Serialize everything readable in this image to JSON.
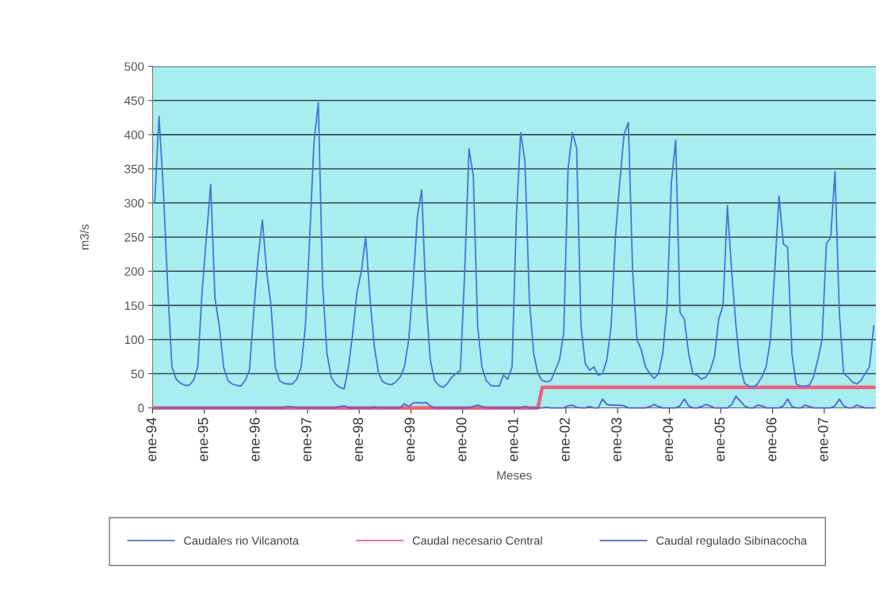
{
  "chart_data": {
    "type": "line",
    "xlabel": "Meses",
    "ylabel": "m3/s",
    "categories": [
      "ene-94",
      null,
      null,
      null,
      null,
      null,
      null,
      null,
      null,
      null,
      null,
      null,
      "ene-95",
      null,
      null,
      null,
      null,
      null,
      null,
      null,
      null,
      null,
      null,
      null,
      "ene-96",
      null,
      null,
      null,
      null,
      null,
      null,
      null,
      null,
      null,
      null,
      null,
      "ene-97",
      null,
      null,
      null,
      null,
      null,
      null,
      null,
      null,
      null,
      null,
      null,
      "ene-98",
      null,
      null,
      null,
      null,
      null,
      null,
      null,
      null,
      null,
      null,
      null,
      "ene-99",
      null,
      null,
      null,
      null,
      null,
      null,
      null,
      null,
      null,
      null,
      null,
      "ene-00",
      null,
      null,
      null,
      null,
      null,
      null,
      null,
      null,
      null,
      null,
      null,
      "ene-01",
      null,
      null,
      null,
      null,
      null,
      null,
      null,
      null,
      null,
      null,
      null,
      "ene-02",
      null,
      null,
      null,
      null,
      null,
      null,
      null,
      null,
      null,
      null,
      null,
      "ene-03",
      null,
      null,
      null,
      null,
      null,
      null,
      null,
      null,
      null,
      null,
      null,
      "ene-04",
      null,
      null,
      null,
      null,
      null,
      null,
      null,
      null,
      null,
      null,
      null,
      "ene-05",
      null,
      null,
      null,
      null,
      null,
      null,
      null,
      null,
      null,
      null,
      null,
      "ene-06",
      null,
      null,
      null,
      null,
      null,
      null,
      null,
      null,
      null,
      null,
      null,
      "ene-07",
      null,
      null,
      null,
      null,
      null,
      null,
      null,
      null,
      null,
      null,
      null
    ],
    "series": [
      {
        "name": "Caudales rio Vilcanota",
        "color": "#3f78d8",
        "values": [
          300,
          427,
          320,
          180,
          60,
          42,
          36,
          33,
          33,
          40,
          60,
          170,
          250,
          327,
          160,
          120,
          60,
          40,
          35,
          33,
          32,
          40,
          55,
          140,
          220,
          275,
          200,
          150,
          60,
          40,
          36,
          35,
          35,
          42,
          60,
          120,
          250,
          390,
          447,
          180,
          80,
          45,
          35,
          30,
          28,
          60,
          110,
          170,
          200,
          251,
          160,
          90,
          50,
          38,
          35,
          34,
          38,
          45,
          60,
          100,
          180,
          280,
          319,
          160,
          70,
          40,
          33,
          30,
          36,
          45,
          50,
          55,
          200,
          379,
          340,
          120,
          60,
          40,
          33,
          32,
          32,
          48,
          42,
          60,
          280,
          403,
          360,
          160,
          80,
          50,
          40,
          38,
          40,
          55,
          70,
          110,
          350,
          403,
          380,
          120,
          65,
          55,
          60,
          48,
          50,
          70,
          120,
          250,
          330,
          400,
          418,
          200,
          100,
          85,
          60,
          50,
          43,
          50,
          80,
          150,
          330,
          392,
          140,
          130,
          80,
          50,
          48,
          42,
          45,
          55,
          75,
          130,
          150,
          296,
          200,
          120,
          60,
          36,
          32,
          30,
          35,
          45,
          60,
          100,
          200,
          310,
          240,
          235,
          79,
          35,
          32,
          32,
          33,
          45,
          70,
          100,
          240,
          250,
          346,
          140,
          50,
          45,
          38,
          35,
          40,
          50,
          60,
          120
        ]
      },
      {
        "name": "Caudal necesario Central",
        "color": "#f0607a",
        "values": [
          0,
          0,
          0,
          0,
          0,
          0,
          0,
          0,
          0,
          0,
          0,
          0,
          0,
          0,
          0,
          0,
          0,
          0,
          0,
          0,
          0,
          0,
          0,
          0,
          0,
          0,
          0,
          0,
          0,
          0,
          0,
          0,
          0,
          0,
          0,
          0,
          0,
          0,
          0,
          0,
          0,
          0,
          0,
          0,
          0,
          0,
          0,
          0,
          0,
          0,
          0,
          0,
          0,
          0,
          0,
          0,
          0,
          0,
          0,
          0,
          0,
          0,
          0,
          0,
          0,
          0,
          0,
          0,
          0,
          0,
          0,
          0,
          0,
          0,
          0,
          0,
          0,
          0,
          0,
          0,
          0,
          0,
          0,
          0,
          0,
          0,
          0,
          0,
          0,
          0,
          30,
          30,
          30,
          30,
          30,
          30,
          30,
          30,
          30,
          30,
          30,
          30,
          30,
          30,
          30,
          30,
          30,
          30,
          30,
          30,
          30,
          30,
          30,
          30,
          30,
          30,
          30,
          30,
          30,
          30,
          30,
          30,
          30,
          30,
          30,
          30,
          30,
          30,
          30,
          30,
          30,
          30,
          30,
          30,
          30,
          30,
          30,
          30,
          30,
          30,
          30,
          30,
          30,
          30,
          30,
          30,
          30,
          30,
          30,
          30,
          30,
          30,
          30,
          30,
          30,
          30,
          30,
          30,
          30,
          30,
          30,
          30,
          30,
          30,
          30,
          30,
          30,
          30
        ]
      },
      {
        "name": "Caudal regulado Sibinacocha",
        "color": "#5560d8",
        "values": [
          0,
          0,
          0,
          0,
          0,
          0,
          0,
          0,
          0,
          0,
          0,
          0,
          0,
          0,
          0,
          0,
          0,
          0,
          0,
          0,
          0,
          0,
          0,
          0,
          0,
          0,
          0,
          0,
          0,
          0,
          0,
          2,
          1,
          0,
          0,
          0,
          0,
          0,
          0,
          0,
          0,
          0,
          0,
          2,
          3,
          0,
          0,
          0,
          0,
          0,
          0,
          1,
          0,
          0,
          0,
          0,
          0,
          0,
          6,
          2,
          7,
          8,
          7,
          8,
          3,
          0,
          0,
          0,
          0,
          0,
          0,
          0,
          0,
          0,
          2,
          4,
          2,
          0,
          0,
          0,
          0,
          0,
          0,
          0,
          0,
          0,
          2,
          0,
          0,
          0,
          0,
          1,
          0,
          0,
          0,
          0,
          3,
          4,
          1,
          0,
          0,
          2,
          0,
          0,
          13,
          5,
          4,
          4,
          4,
          3,
          0,
          0,
          0,
          0,
          0,
          2,
          5,
          2,
          0,
          0,
          0,
          0,
          3,
          13,
          3,
          0,
          0,
          2,
          5,
          3,
          0,
          0,
          0,
          0,
          5,
          17,
          10,
          3,
          0,
          0,
          4,
          3,
          0,
          0,
          0,
          0,
          3,
          13,
          2,
          0,
          0,
          4,
          2,
          0,
          0,
          0,
          0,
          0,
          3,
          13,
          3,
          0,
          0,
          4,
          2,
          0,
          0,
          0
        ]
      }
    ],
    "ylim": [
      0,
      500
    ],
    "yticks": [
      0,
      50,
      100,
      150,
      200,
      250,
      300,
      350,
      400,
      450,
      500
    ],
    "grid": "y",
    "legend": "bottom",
    "marker": "none",
    "line_style": "solid"
  }
}
